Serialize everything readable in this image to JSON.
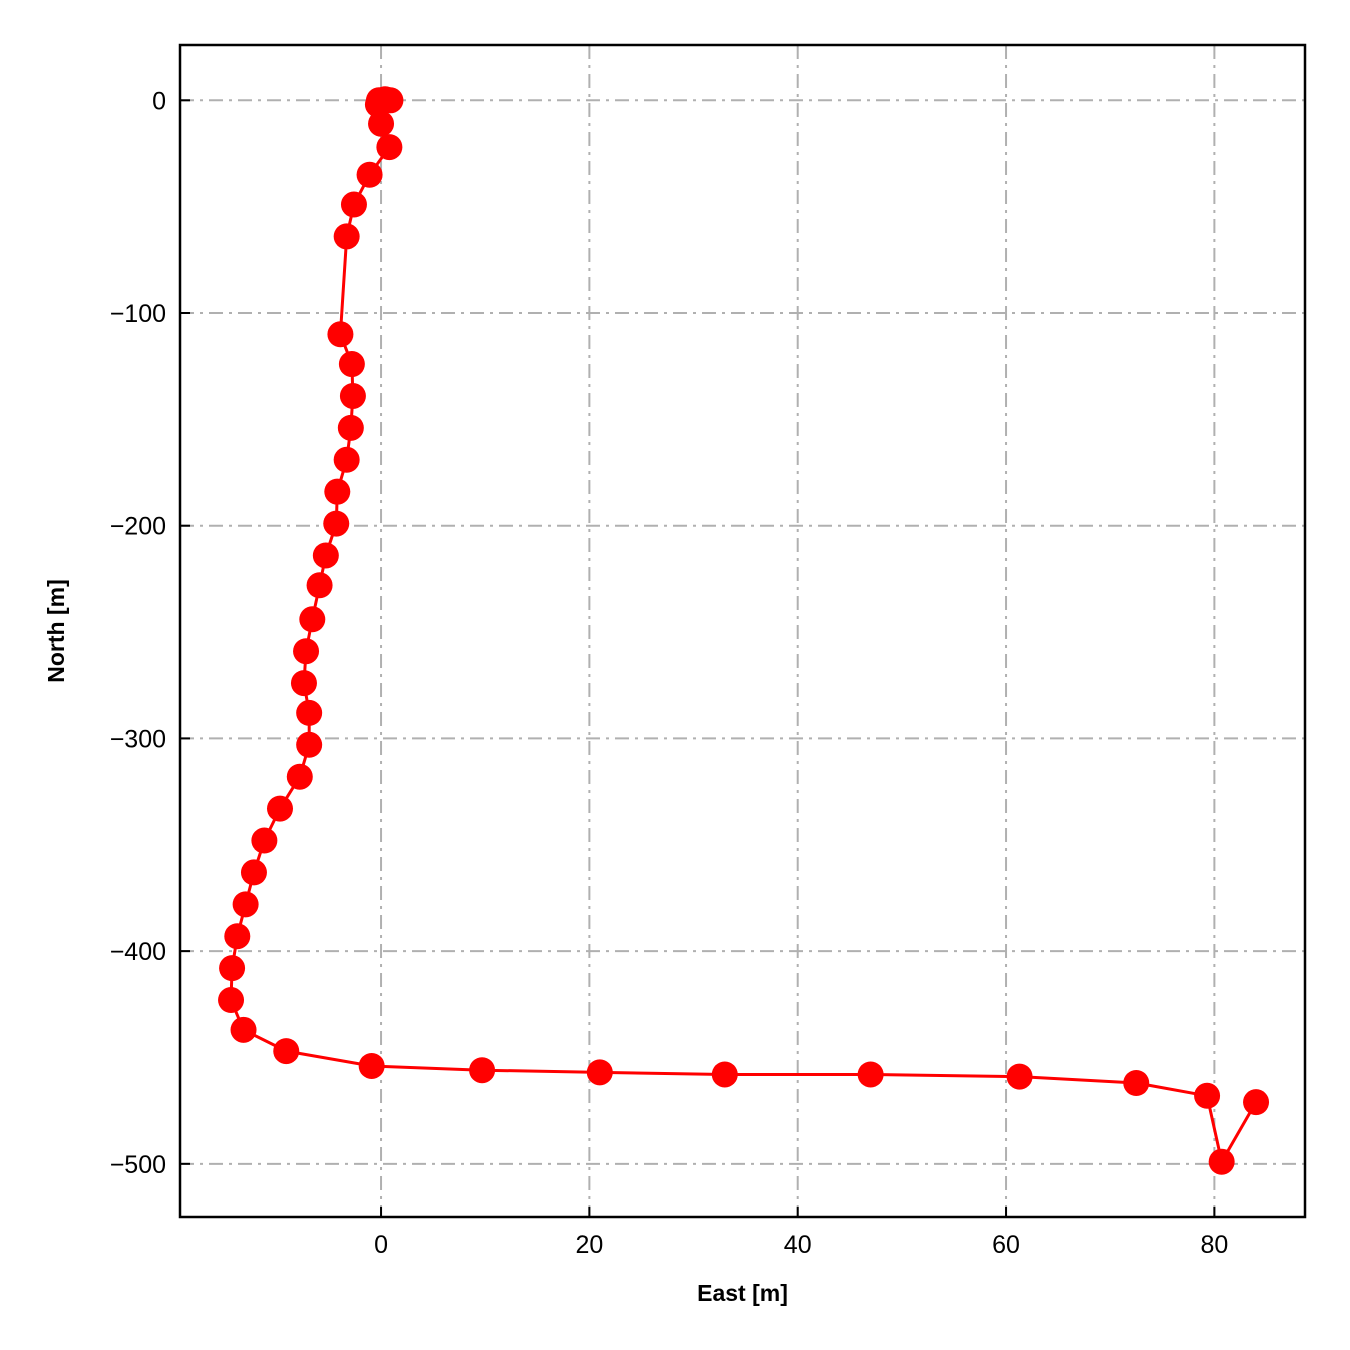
{
  "chart_data": {
    "type": "line",
    "xlabel": "East [m]",
    "ylabel": "North [m]",
    "xlim": [
      -19.3,
      88.7
    ],
    "ylim": [
      -525,
      26
    ],
    "xticks": [
      0,
      20,
      40,
      60,
      80
    ],
    "yticks": [
      0,
      -100,
      -200,
      -300,
      -400,
      -500
    ],
    "grid": true,
    "grid_style": "dash-dot",
    "markers": true,
    "colors": {
      "line": "#ff0000",
      "grid": "#b0b0b0",
      "frame": "#000000"
    },
    "series": [
      {
        "x": [
          0.9,
          0.4,
          -0.2,
          -0.3,
          0.0,
          0.8,
          -1.1,
          -2.6,
          -3.3,
          -3.9,
          -2.8,
          -2.7,
          -2.9,
          -3.3,
          -4.2,
          -4.3,
          -5.3,
          -5.9,
          -6.6,
          -7.2,
          -7.4,
          -6.9,
          -6.9,
          -7.8,
          -9.7,
          -11.2,
          -12.2,
          -13.0,
          -13.8,
          -14.3,
          -14.4,
          -13.2,
          -9.1,
          -0.9,
          9.7,
          21.0,
          33.0,
          47.0,
          61.3,
          72.5,
          79.3,
          80.7,
          84.0
        ],
        "y": [
          0,
          0.5,
          0,
          -2,
          -11,
          -22,
          -35,
          -49,
          -64,
          -110,
          -124,
          -139,
          -154,
          -169,
          -184,
          -199,
          -214,
          -228,
          -244,
          -259,
          -274,
          -288,
          -303,
          -318,
          -333,
          -348,
          -363,
          -378,
          -393,
          -408,
          -423,
          -437,
          -447,
          -454,
          -456,
          -457,
          -458,
          -458,
          -459,
          -462,
          -468,
          -499,
          -471
        ]
      }
    ]
  }
}
